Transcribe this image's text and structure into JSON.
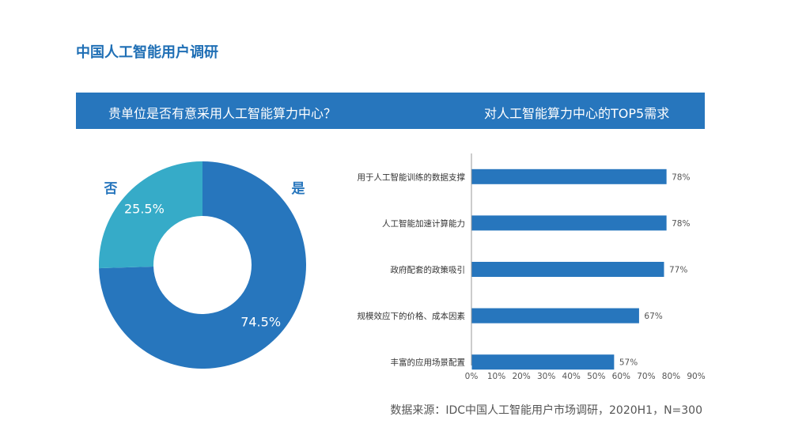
{
  "page": {
    "title": "中国人工智能用户调研",
    "source": "数据来源：IDC中国人工智能用户市场调研，2020H1，N=300"
  },
  "banner": {
    "left_title": "贵单位是否有意采用人工智能算力中心？",
    "right_title": "对人工智能算力中心的TOP5需求"
  },
  "colors": {
    "primary": "#2776bd",
    "secondary": "#36abc8",
    "title": "#1f6fb5"
  },
  "chart_data": [
    {
      "type": "pie",
      "title": "贵单位是否有意采用人工智能算力中心？",
      "slices": [
        {
          "name": "是",
          "value": 74.5,
          "label": "74.5%",
          "color": "#2776bd"
        },
        {
          "name": "否",
          "value": 25.5,
          "label": "25.5%",
          "color": "#36abc8"
        }
      ]
    },
    {
      "type": "bar",
      "orientation": "horizontal",
      "title": "对人工智能算力中心的TOP5需求",
      "categories": [
        "用于人工智能训练的数据支撑",
        "人工智能加速计算能力",
        "政府配套的政策吸引",
        "规模效应下的价格、成本因素",
        "丰富的应用场景配置"
      ],
      "values": [
        78,
        78,
        77,
        67,
        57
      ],
      "value_labels": [
        "78%",
        "78%",
        "77%",
        "67%",
        "57%"
      ],
      "x_ticks": [
        "0%",
        "10%",
        "20%",
        "30%",
        "40%",
        "50%",
        "60%",
        "70%",
        "80%",
        "90%"
      ],
      "xlim": [
        0,
        90
      ],
      "grid": false,
      "color": "#2776bd"
    }
  ]
}
